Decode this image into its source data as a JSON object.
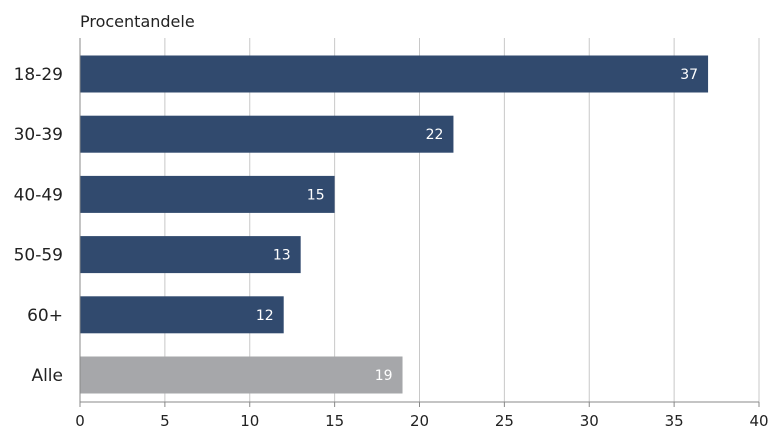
{
  "colors": {
    "bar": "#314a6e",
    "bar_total": "#a6a7aa",
    "grid": "#c8c8c8",
    "axis": "#888888",
    "text": "#222222",
    "value_label": "#ffffff"
  },
  "chart_data": {
    "type": "bar",
    "orientation": "horizontal",
    "title": "",
    "unit_label": "Procentandele",
    "xlabel": "",
    "ylabel": "",
    "categories": [
      "18-29",
      "30-39",
      "40-49",
      "50-59",
      "60+",
      "Alle"
    ],
    "values": [
      37,
      22,
      15,
      13,
      12,
      19
    ],
    "highlight": [
      false,
      false,
      false,
      false,
      false,
      true
    ],
    "xlim": [
      0,
      40
    ],
    "xticks": [
      0,
      5,
      10,
      15,
      20,
      25,
      30,
      35,
      40
    ],
    "grid": "vertical",
    "legend": "none",
    "data_labels": true
  }
}
